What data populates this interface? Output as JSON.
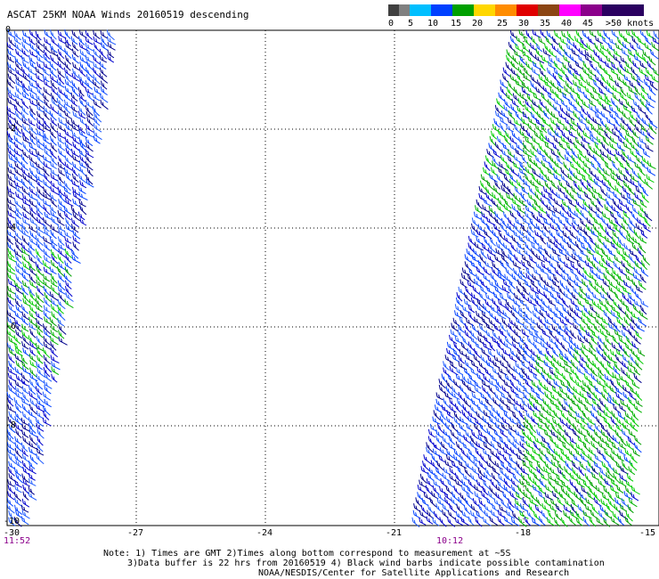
{
  "title": "ASCAT 25KM NOAA Winds 20160519 descending",
  "legend": {
    "labels": [
      "0",
      "5",
      "10",
      "15",
      "20",
      "25",
      "30",
      "35",
      "40",
      "45",
      ">50 knots"
    ],
    "colors": [
      "#404040",
      "#808080",
      "#00bfff",
      "#0040ff",
      "#00a000",
      "#ffd700",
      "#ff8c00",
      "#e00000",
      "#8b4513",
      "#ff00ff",
      "#8b008b",
      "#2a0060"
    ]
  },
  "axes": {
    "x_ticks": [
      "-30",
      "-27",
      "-24",
      "-21",
      "-18",
      "-15"
    ],
    "y_ticks": [
      "0",
      "-2",
      "-4",
      "-6",
      "-8",
      "-10"
    ]
  },
  "times": [
    "11:52",
    "10:12"
  ],
  "notes": [
    "Note: 1) Times are GMT 2)Times along bottom correspond to measurement at ~5S",
    "3)Data buffer is 22 hrs from 20160519 4) Black wind barbs indicate possible contamination",
    "NOAA/NESDIS/Center for Satellite Applications and Research"
  ],
  "swaths": [
    {
      "name": "west-swath",
      "dominant": "blue"
    },
    {
      "name": "east-swath",
      "dominant": "mixed"
    }
  ]
}
